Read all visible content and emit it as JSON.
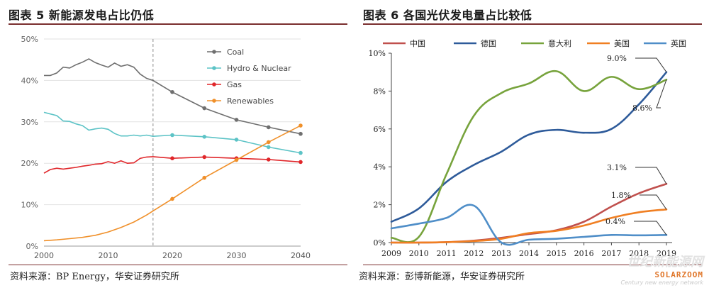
{
  "left_title": "图表 5 新能源发电占比仍低",
  "right_title": "图表 6 各国光伏发电量占比较低",
  "left_source": "资料来源：BP Energy，华安证券研究所",
  "right_source": "资料来源：彭博新能源，华安证券研究所",
  "watermark": {
    "brand": "SOLARZOOM",
    "cn": "世纪新能源网",
    "sub": "Century new energy network"
  },
  "colors": {
    "rule": "#7a2f2f"
  },
  "chart_data": [
    {
      "type": "line",
      "title": "",
      "xlabel": "",
      "ylabel": "",
      "xlim": [
        2000,
        2040
      ],
      "ylim": [
        0,
        50
      ],
      "x_ticks": [
        "2000",
        "2010",
        "2020",
        "2030",
        "2040"
      ],
      "y_ticks": [
        "0%",
        "10%",
        "20%",
        "30%",
        "40%",
        "50%"
      ],
      "grid": true,
      "legend": "top-right",
      "vline_x": 2017,
      "series": [
        {
          "name": "Coal",
          "color": "#6f6f6f",
          "x": [
            2000,
            2001,
            2002,
            2003,
            2004,
            2005,
            2006,
            2007,
            2008,
            2009,
            2010,
            2011,
            2012,
            2013,
            2014,
            2015,
            2016,
            2017,
            2020,
            2025,
            2030,
            2035,
            2040
          ],
          "y": [
            41.2,
            41.2,
            41.8,
            43.2,
            43.0,
            43.8,
            44.4,
            45.2,
            44.3,
            43.7,
            43.2,
            44.2,
            43.4,
            43.8,
            43.2,
            41.5,
            40.5,
            40.0,
            37.2,
            33.3,
            30.5,
            28.7,
            27.1
          ],
          "markers_at": [
            2020,
            2025,
            2030,
            2035,
            2040
          ]
        },
        {
          "name": "Hydro & Nuclear",
          "color": "#5cc3c6",
          "x": [
            2000,
            2001,
            2002,
            2003,
            2004,
            2005,
            2006,
            2007,
            2008,
            2009,
            2010,
            2011,
            2012,
            2013,
            2014,
            2015,
            2016,
            2017,
            2020,
            2025,
            2030,
            2035,
            2040
          ],
          "y": [
            32.3,
            31.9,
            31.5,
            30.2,
            30.1,
            29.5,
            29.1,
            28.0,
            28.3,
            28.5,
            28.2,
            27.2,
            26.6,
            26.6,
            26.8,
            26.6,
            26.8,
            26.5,
            26.8,
            26.4,
            25.7,
            23.9,
            22.5
          ],
          "markers_at": [
            2020,
            2025,
            2030,
            2035,
            2040
          ]
        },
        {
          "name": "Gas",
          "color": "#e0262a",
          "x": [
            2000,
            2001,
            2002,
            2003,
            2004,
            2005,
            2006,
            2007,
            2008,
            2009,
            2010,
            2011,
            2012,
            2013,
            2014,
            2015,
            2016,
            2017,
            2020,
            2025,
            2030,
            2035,
            2040
          ],
          "y": [
            17.6,
            18.5,
            18.8,
            18.6,
            18.8,
            19.0,
            19.3,
            19.5,
            19.8,
            19.9,
            20.4,
            20.0,
            20.6,
            20.0,
            20.1,
            21.2,
            21.5,
            21.6,
            21.2,
            21.5,
            21.2,
            20.9,
            20.3
          ],
          "markers_at": [
            2020,
            2025,
            2030,
            2035,
            2040
          ]
        },
        {
          "name": "Renewables",
          "color": "#f0902a",
          "x": [
            2000,
            2002,
            2004,
            2006,
            2008,
            2010,
            2012,
            2014,
            2016,
            2017,
            2020,
            2025,
            2030,
            2035,
            2040
          ],
          "y": [
            1.3,
            1.5,
            1.8,
            2.1,
            2.6,
            3.4,
            4.5,
            5.8,
            7.5,
            8.5,
            11.4,
            16.5,
            20.8,
            25.1,
            29.1
          ],
          "markers_at": [
            2020,
            2025,
            2030,
            2035,
            2040
          ]
        }
      ]
    },
    {
      "type": "line",
      "title": "",
      "xlabel": "",
      "ylabel": "",
      "categories": [
        "2009",
        "2010",
        "2011",
        "2012",
        "2013",
        "2014",
        "2015",
        "2016",
        "2017",
        "2018",
        "2019"
      ],
      "ylim": [
        0,
        10
      ],
      "y_ticks": [
        "0%",
        "2%",
        "4%",
        "6%",
        "8%",
        "10%"
      ],
      "grid": false,
      "legend": "top",
      "series": [
        {
          "name": "中国",
          "color": "#c0504d",
          "values": [
            0.0,
            0.0,
            0.02,
            0.1,
            0.25,
            0.45,
            0.65,
            1.1,
            1.9,
            2.6,
            3.1
          ]
        },
        {
          "name": "德国",
          "color": "#2e5b9a",
          "values": [
            1.1,
            1.8,
            3.2,
            4.1,
            4.8,
            5.7,
            5.95,
            5.8,
            6.0,
            7.3,
            9.0
          ]
        },
        {
          "name": "意大利",
          "color": "#77a33c",
          "values": [
            0.25,
            0.3,
            3.6,
            6.7,
            7.9,
            8.4,
            9.05,
            8.0,
            8.75,
            8.1,
            8.6
          ]
        },
        {
          "name": "美国",
          "color": "#f07f22",
          "values": [
            0.0,
            0.0,
            0.02,
            0.08,
            0.2,
            0.5,
            0.62,
            0.9,
            1.3,
            1.6,
            1.75
          ]
        },
        {
          "name": "英国",
          "color": "#4f8ec8",
          "values": [
            0.75,
            1.0,
            1.3,
            1.95,
            0.0,
            0.15,
            0.2,
            0.3,
            0.4,
            0.38,
            0.4
          ]
        }
      ],
      "annotations": [
        "9.0%",
        "8.6%",
        "3.1%",
        "1.8%",
        "0.4%"
      ]
    }
  ]
}
